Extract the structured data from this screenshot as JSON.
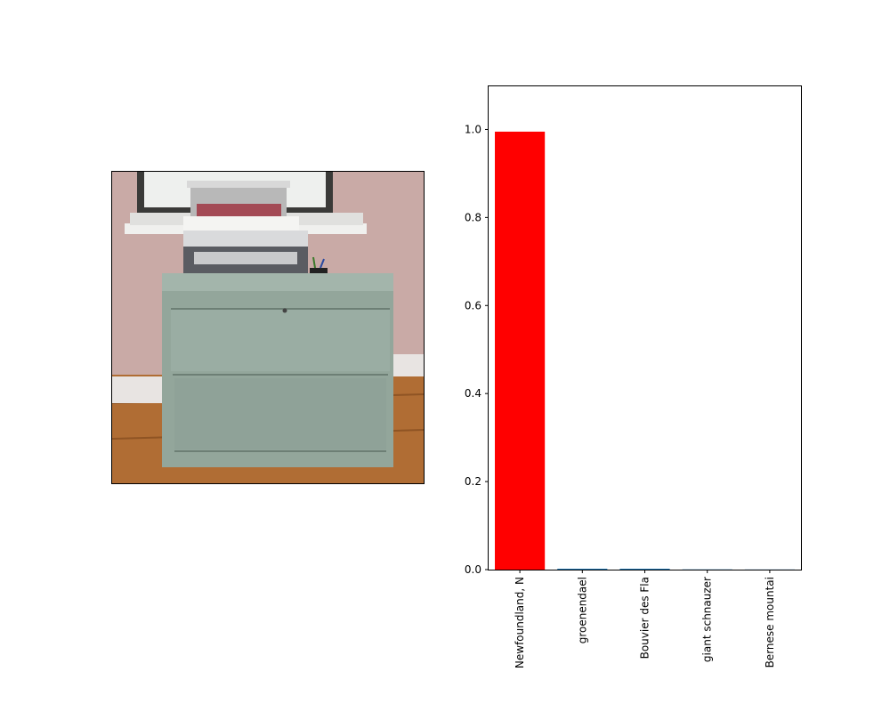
{
  "image_panel": {
    "icon": "photo-icon",
    "description_icon": "printer-on-filing-cabinet-icon"
  },
  "chart_data": {
    "type": "bar",
    "categories": [
      "Newfoundland, N",
      "groenendael",
      "Bouvier des Fla",
      "giant schnauzer",
      "Bernese mountai"
    ],
    "values": [
      0.995,
      0.002,
      0.002,
      0.0005,
      0.0003
    ],
    "bar_colors": [
      "#ff0000",
      "#1f77b4",
      "#1f77b4",
      "#1f77b4",
      "#1f77b4"
    ],
    "yticks": [
      "0.0",
      "0.2",
      "0.4",
      "0.6",
      "0.8",
      "1.0"
    ],
    "ylim": [
      0,
      1.1
    ],
    "title": "",
    "xlabel": "",
    "ylabel": "",
    "grid": false,
    "legend": "none"
  }
}
